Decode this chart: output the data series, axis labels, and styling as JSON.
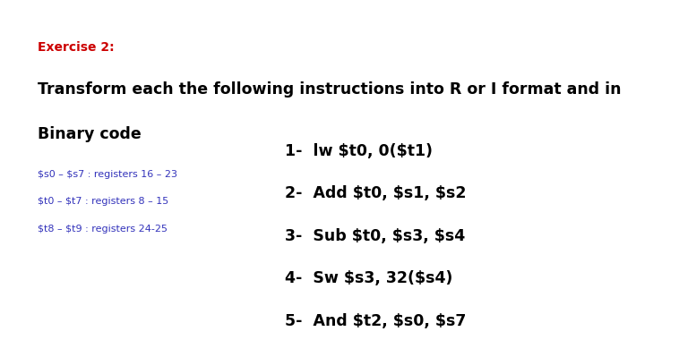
{
  "background_color": "#ffffff",
  "exercise_label": "Exercise 2:",
  "exercise_color": "#cc0000",
  "exercise_fontsize": 10,
  "title_line1": "Transform each the following instructions into R or I format and in",
  "title_line2": "Binary code",
  "title_fontsize": 12.5,
  "title_color": "#000000",
  "register_lines": [
    "$s0 – $s7 : registers 16 – 23",
    "$t0 – $t7 : registers 8 – 15",
    "$t8 – $t9 : registers 24-25"
  ],
  "register_color": "#3333bb",
  "register_fontsize": 8.0,
  "instructions": [
    "1-  lw $t0, 0($t1)",
    "2-  Add $t0, $s1, $s2",
    "3-  Sub $t0, $s3, $s4",
    "4-  Sw $s3, 32($s4)",
    "5-  And $t2, $s0, $s7"
  ],
  "instruction_color": "#000000",
  "instruction_fontsize": 12.5,
  "fig_width": 7.58,
  "fig_height": 3.8,
  "dpi": 100
}
